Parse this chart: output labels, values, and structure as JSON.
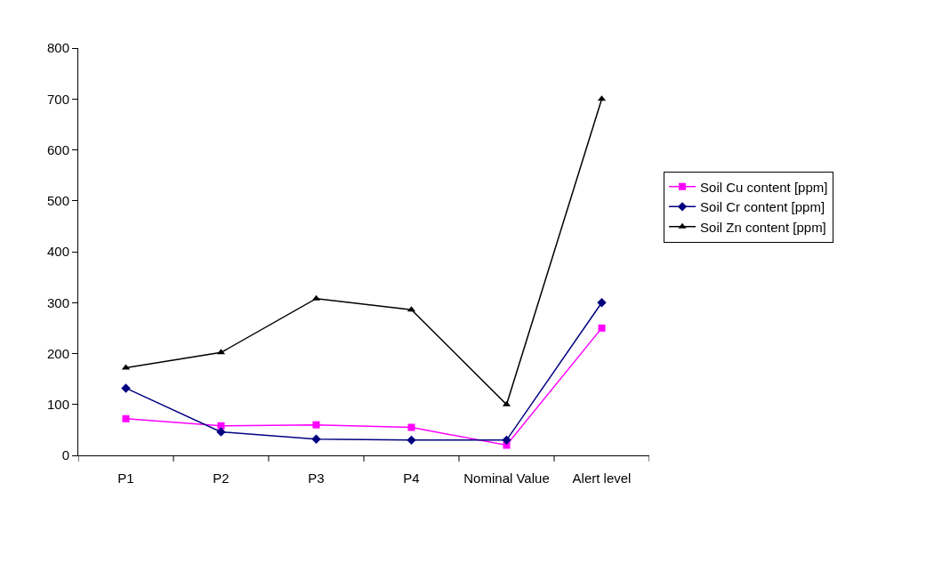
{
  "chart_data": {
    "type": "line",
    "categories": [
      "P1",
      "P2",
      "P3",
      "P4",
      "Nominal Value",
      "Alert level"
    ],
    "series": [
      {
        "name": "Soil Cu content [ppm]",
        "color": "#ff00ff",
        "marker": "square",
        "values": [
          72,
          58,
          60,
          55,
          20,
          250
        ]
      },
      {
        "name": "Soil Cr content [ppm]",
        "color": "#000080",
        "marker": "diamond",
        "values": [
          132,
          46,
          32,
          30,
          30,
          300
        ]
      },
      {
        "name": "Soil Zn content [ppm]",
        "color": "#000000",
        "marker": "triangle",
        "values": [
          172,
          202,
          308,
          286,
          100,
          700
        ]
      }
    ],
    "ylim": [
      0,
      800
    ],
    "yticks": [
      0,
      100,
      200,
      300,
      400,
      500,
      600,
      700,
      800
    ],
    "grid": false,
    "legend": "right"
  }
}
